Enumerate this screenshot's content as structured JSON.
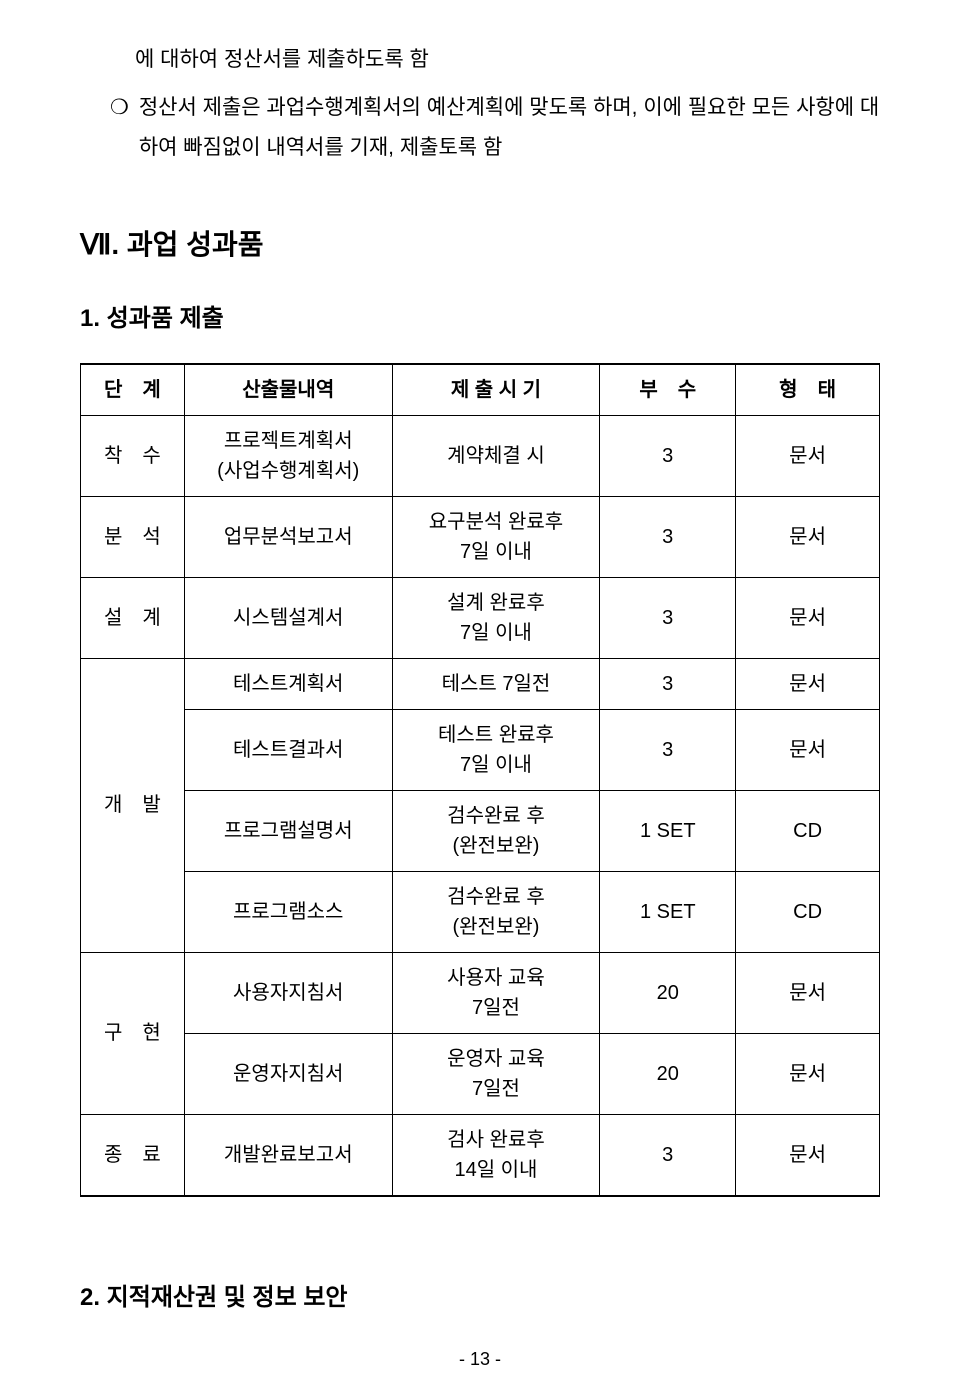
{
  "intro": {
    "line1": "에 대하여 정산서를 제출하도록 함",
    "bullet_marker": "❍",
    "line2": "정산서 제출은 과업수행계획서의 예산계획에 맞도록 하며, 이에 필요한 모든 사항에 대하여 빠짐없이 내역서를 기재, 제출토록 함"
  },
  "section7": {
    "heading": "Ⅶ. 과업 성과품",
    "sub1": "1. 성과품 제출",
    "sub2": "2. 지적재산권 및 정보 보안"
  },
  "table": {
    "headers": {
      "stage": "단　계",
      "output": "산출물내역",
      "timing": "제 출 시 기",
      "copies": "부　수",
      "format": "형　태"
    },
    "rows": [
      {
        "stage": "착　수",
        "output": "프로젝트계획서\n(사업수행계획서)",
        "timing": "계약체결 시",
        "copies": "3",
        "format": "문서",
        "rowspan": 1
      },
      {
        "stage": "분　석",
        "output": "업무분석보고서",
        "timing": "요구분석 완료후\n7일 이내",
        "copies": "3",
        "format": "문서",
        "rowspan": 1
      },
      {
        "stage": "설　계",
        "output": "시스템설계서",
        "timing": "설계 완료후\n7일 이내",
        "copies": "3",
        "format": "문서",
        "rowspan": 1
      },
      {
        "stage": "개　발",
        "output": "테스트계획서",
        "timing": "테스트 7일전",
        "copies": "3",
        "format": "문서",
        "rowspan": 4
      },
      {
        "output": "테스트결과서",
        "timing": "테스트 완료후\n7일 이내",
        "copies": "3",
        "format": "문서"
      },
      {
        "output": "프로그램설명서",
        "timing": "검수완료 후\n(완전보완)",
        "copies": "1 SET",
        "format": "CD"
      },
      {
        "output": "프로그램소스",
        "timing": "검수완료 후\n(완전보완)",
        "copies": "1 SET",
        "format": "CD"
      },
      {
        "stage": "구　현",
        "output": "사용자지침서",
        "timing": "사용자 교육\n7일전",
        "copies": "20",
        "format": "문서",
        "rowspan": 2
      },
      {
        "output": "운영자지침서",
        "timing": "운영자 교육\n7일전",
        "copies": "20",
        "format": "문서"
      },
      {
        "stage": "종　료",
        "output": "개발완료보고서",
        "timing": "검사 완료후\n14일 이내",
        "copies": "3",
        "format": "문서",
        "rowspan": 1
      }
    ]
  },
  "page_number": "- 13 -"
}
